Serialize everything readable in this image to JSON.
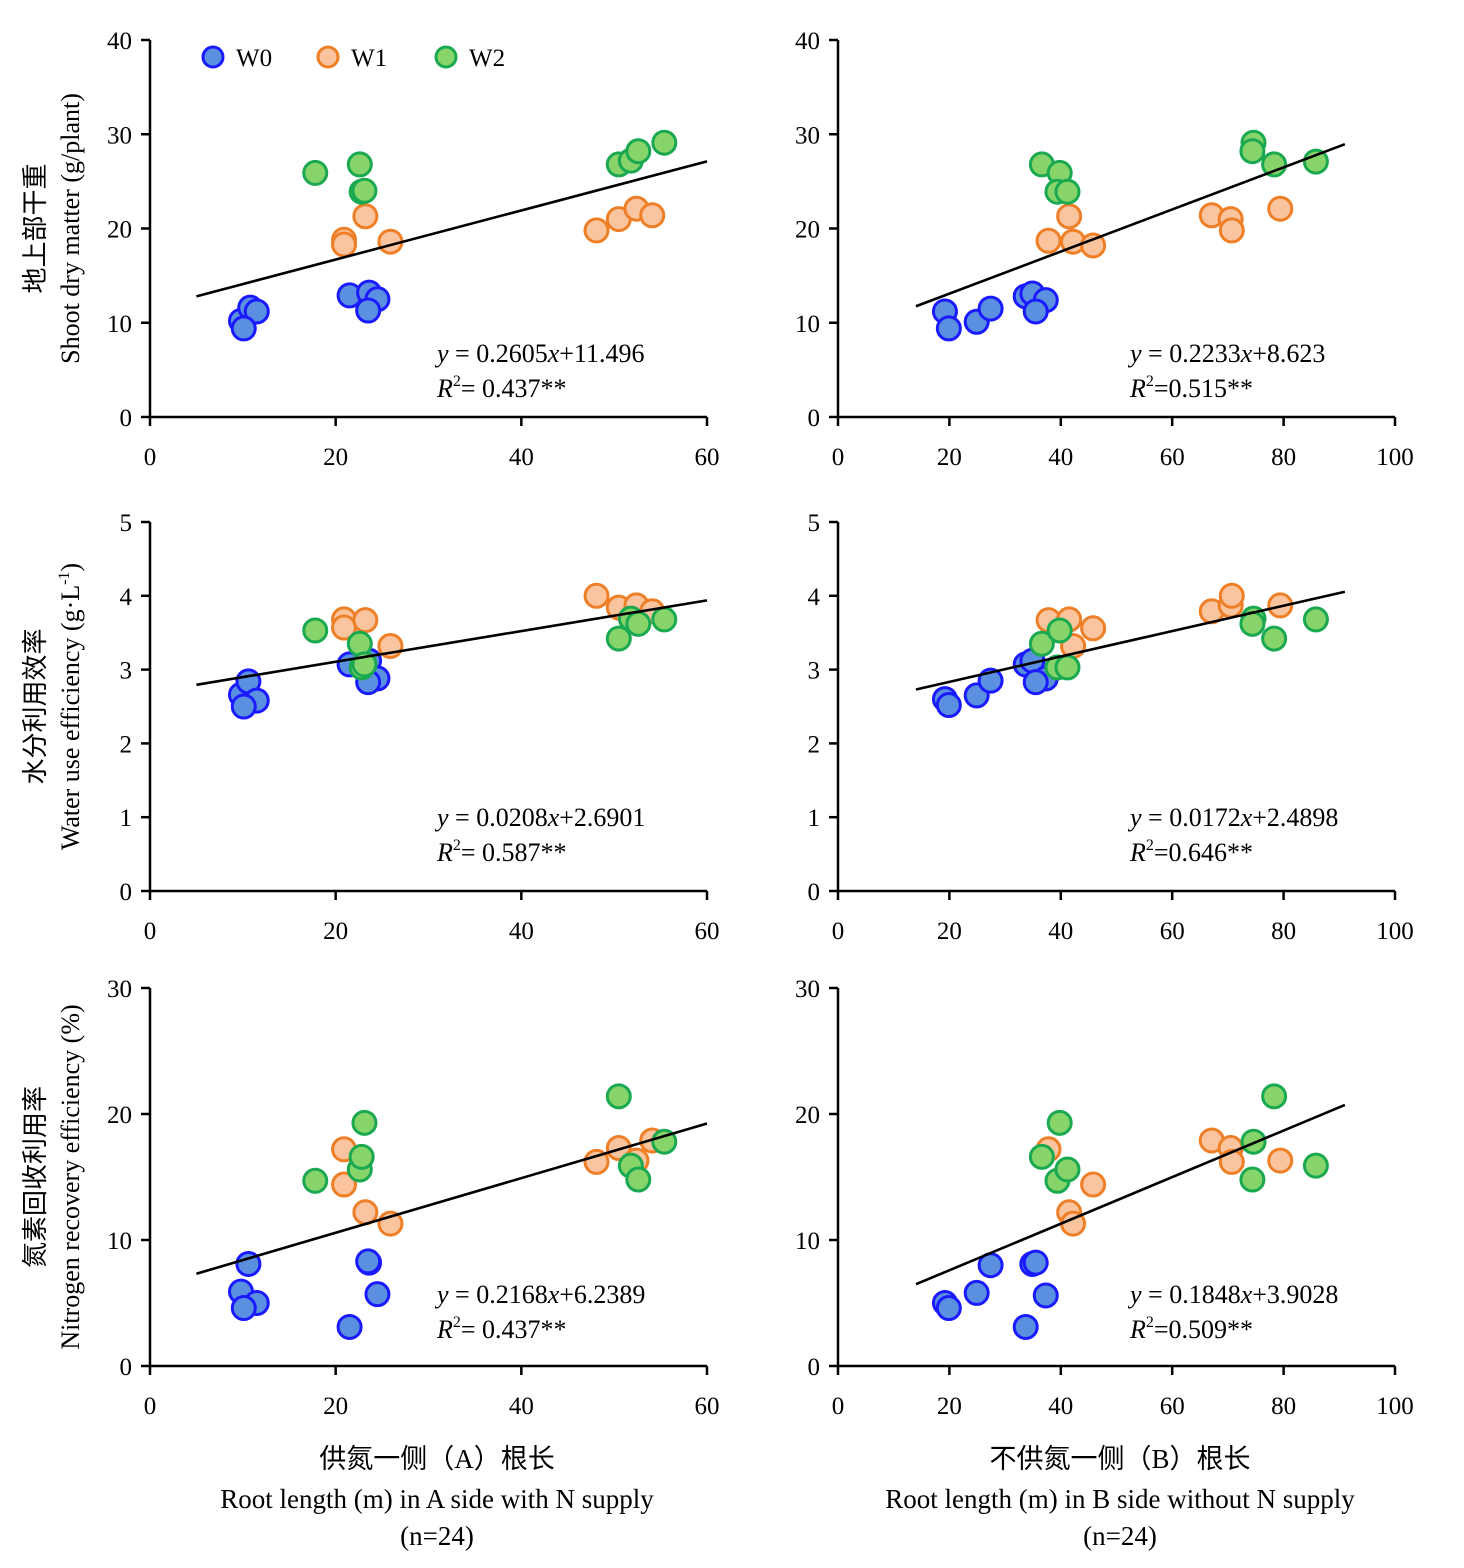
{
  "colors": {
    "W0": {
      "fill": "#5b8fdf",
      "stroke": "#1a1aff"
    },
    "W1": {
      "fill": "#f9c49e",
      "stroke": "#ef7f27"
    },
    "W2": {
      "fill": "#86d46a",
      "stroke": "#1aa850"
    }
  },
  "legend": [
    "W0",
    "W1",
    "W2"
  ],
  "xlabels": {
    "left_cn": "供氮一侧（A）根长",
    "left_en": "Root length (m) in A side with  N supply",
    "left_n": "(n=24)",
    "right_cn": "不供氮一侧（B）根长",
    "right_en": "Root length (m) in B side without N supply",
    "right_n": "(n=24)"
  },
  "chart_data": [
    {
      "type": "scatter",
      "row": 0,
      "col": 0,
      "ylabel_cn": "地上部干重",
      "ylabel_en": "Shoot dry matter (g/plant)",
      "xlim": [
        0,
        60
      ],
      "xticks": [
        "0",
        "20",
        "40",
        "60"
      ],
      "ylim": [
        0,
        40
      ],
      "yticks": [
        "0",
        "10",
        "20",
        "30",
        "40"
      ],
      "fit": {
        "slope": 0.2605,
        "intercept": 11.496,
        "x_range": [
          5,
          60
        ]
      },
      "equation": {
        "y": "y",
        "eq": " = 0.2605",
        "x": "x",
        "rest": "+11.496",
        "r": "R",
        "sup": "2",
        "r_rest": "= 0.437**"
      },
      "series": [
        {
          "name": "W0",
          "points": [
            [
              9.8,
              10.2
            ],
            [
              10.8,
              11.6
            ],
            [
              11.5,
              11.2
            ],
            [
              10.1,
              9.4
            ],
            [
              21.5,
              12.9
            ],
            [
              23.6,
              13.2
            ],
            [
              24.5,
              12.5
            ],
            [
              23.5,
              11.3
            ]
          ]
        },
        {
          "name": "W1",
          "points": [
            [
              20.9,
              18.8
            ],
            [
              20.9,
              18.3
            ],
            [
              23.2,
              21.3
            ],
            [
              25.9,
              18.6
            ],
            [
              48.1,
              19.8
            ],
            [
              50.5,
              21.0
            ],
            [
              52.4,
              22.1
            ],
            [
              54.1,
              21.4
            ]
          ]
        },
        {
          "name": "W2",
          "points": [
            [
              17.8,
              25.9
            ],
            [
              22.6,
              26.8
            ],
            [
              22.8,
              23.9
            ],
            [
              23.1,
              24.0
            ],
            [
              50.5,
              26.8
            ],
            [
              51.8,
              27.2
            ],
            [
              52.6,
              28.2
            ],
            [
              55.4,
              29.1
            ]
          ]
        }
      ]
    },
    {
      "type": "scatter",
      "row": 0,
      "col": 1,
      "ylabel_cn": "",
      "ylabel_en": "",
      "xlim": [
        0,
        100
      ],
      "xticks": [
        "0",
        "20",
        "40",
        "60",
        "80",
        "100"
      ],
      "ylim": [
        0,
        40
      ],
      "yticks": [
        "0",
        "10",
        "20",
        "30",
        "40"
      ],
      "fit": {
        "slope": 0.2233,
        "intercept": 8.623,
        "x_range": [
          14,
          91
        ]
      },
      "equation": {
        "y": "y",
        "eq": " = 0.2233",
        "x": "x",
        "rest": "+8.623",
        "r": "R",
        "sup": "2",
        "r_rest": "=0.515**"
      },
      "series": [
        {
          "name": "W0",
          "points": [
            [
              19.2,
              11.2
            ],
            [
              19.9,
              9.4
            ],
            [
              24.9,
              10.1
            ],
            [
              27.4,
              11.5
            ],
            [
              33.7,
              12.8
            ],
            [
              34.9,
              13.1
            ],
            [
              37.3,
              12.4
            ],
            [
              35.5,
              11.2
            ]
          ]
        },
        {
          "name": "W1",
          "points": [
            [
              37.8,
              18.7
            ],
            [
              41.5,
              21.3
            ],
            [
              42.2,
              18.6
            ],
            [
              45.8,
              18.2
            ],
            [
              67.1,
              21.4
            ],
            [
              70.5,
              21.0
            ],
            [
              70.7,
              19.8
            ],
            [
              79.4,
              22.1
            ]
          ]
        },
        {
          "name": "W2",
          "points": [
            [
              36.6,
              26.8
            ],
            [
              39.8,
              25.9
            ],
            [
              39.4,
              23.9
            ],
            [
              41.2,
              23.9
            ],
            [
              74.6,
              29.1
            ],
            [
              74.4,
              28.2
            ],
            [
              78.3,
              26.8
            ],
            [
              85.8,
              27.1
            ]
          ]
        }
      ]
    },
    {
      "type": "scatter",
      "row": 1,
      "col": 0,
      "ylabel_cn": "水分利用效率",
      "ylabel_en": "Water use efficiency (g·L",
      "ylabel_sup": "-1",
      "ylabel_end": ")",
      "xlim": [
        0,
        60
      ],
      "xticks": [
        "0",
        "20",
        "40",
        "60"
      ],
      "ylim": [
        0,
        5
      ],
      "yticks": [
        "0",
        "1",
        "2",
        "3",
        "4",
        "5"
      ],
      "fit": {
        "slope": 0.0208,
        "intercept": 2.6901,
        "x_range": [
          5,
          60
        ]
      },
      "equation": {
        "y": "y",
        "eq": " = 0.0208",
        "x": "x",
        "rest": "+2.6901",
        "r": "R",
        "sup": "2",
        "r_rest": "= 0.587**"
      },
      "series": [
        {
          "name": "W0",
          "points": [
            [
              9.8,
              2.66
            ],
            [
              10.6,
              2.84
            ],
            [
              11.5,
              2.58
            ],
            [
              10.1,
              2.5
            ],
            [
              21.5,
              3.07
            ],
            [
              23.6,
              3.12
            ],
            [
              24.5,
              2.88
            ],
            [
              23.5,
              2.83
            ]
          ]
        },
        {
          "name": "W1",
          "points": [
            [
              20.9,
              3.68
            ],
            [
              20.9,
              3.57
            ],
            [
              23.2,
              3.67
            ],
            [
              25.9,
              3.32
            ],
            [
              48.1,
              4.0
            ],
            [
              50.5,
              3.84
            ],
            [
              52.4,
              3.87
            ],
            [
              54.1,
              3.79
            ]
          ]
        },
        {
          "name": "W2",
          "points": [
            [
              17.8,
              3.53
            ],
            [
              22.6,
              3.35
            ],
            [
              22.8,
              3.03
            ],
            [
              23.1,
              3.07
            ],
            [
              50.5,
              3.42
            ],
            [
              51.8,
              3.69
            ],
            [
              52.6,
              3.62
            ],
            [
              55.4,
              3.68
            ]
          ]
        }
      ]
    },
    {
      "type": "scatter",
      "row": 1,
      "col": 1,
      "ylabel_cn": "",
      "ylabel_en": "",
      "xlim": [
        0,
        100
      ],
      "xticks": [
        "0",
        "20",
        "40",
        "60",
        "80",
        "100"
      ],
      "ylim": [
        0,
        5
      ],
      "yticks": [
        "0",
        "1",
        "2",
        "3",
        "4",
        "5"
      ],
      "fit": {
        "slope": 0.0172,
        "intercept": 2.4898,
        "x_range": [
          14,
          91
        ]
      },
      "equation": {
        "y": "y",
        "eq": " = 0.0172",
        "x": "x",
        "rest": "+2.4898",
        "r": "R",
        "sup": "2",
        "r_rest": "=0.646**"
      },
      "series": [
        {
          "name": "W0",
          "points": [
            [
              19.2,
              2.6
            ],
            [
              19.9,
              2.52
            ],
            [
              24.9,
              2.65
            ],
            [
              27.4,
              2.85
            ],
            [
              33.7,
              3.07
            ],
            [
              34.9,
              3.12
            ],
            [
              37.3,
              2.88
            ],
            [
              35.5,
              2.83
            ]
          ]
        },
        {
          "name": "W1",
          "points": [
            [
              37.8,
              3.67
            ],
            [
              41.5,
              3.68
            ],
            [
              42.2,
              3.32
            ],
            [
              45.8,
              3.56
            ],
            [
              67.1,
              3.79
            ],
            [
              70.5,
              3.87
            ],
            [
              70.7,
              4.0
            ],
            [
              79.4,
              3.87
            ]
          ]
        },
        {
          "name": "W2",
          "points": [
            [
              36.6,
              3.35
            ],
            [
              39.8,
              3.53
            ],
            [
              39.4,
              3.03
            ],
            [
              41.2,
              3.03
            ],
            [
              74.6,
              3.69
            ],
            [
              74.4,
              3.62
            ],
            [
              78.3,
              3.42
            ],
            [
              85.8,
              3.68
            ]
          ]
        }
      ]
    },
    {
      "type": "scatter",
      "row": 2,
      "col": 0,
      "ylabel_cn": "氮素回收利用率",
      "ylabel_en": "Nitrogen recovery efficiency (%)",
      "xlim": [
        0,
        60
      ],
      "xticks": [
        "0",
        "20",
        "40",
        "60"
      ],
      "ylim": [
        0,
        30
      ],
      "yticks": [
        "0",
        "10",
        "20",
        "30"
      ],
      "fit": {
        "slope": 0.2168,
        "intercept": 6.2389,
        "x_range": [
          5,
          60
        ]
      },
      "equation": {
        "y": "y",
        "eq": " = 0.2168",
        "x": "x",
        "rest": "+6.2389",
        "r": "R",
        "sup": "2",
        "r_rest": "= 0.437**"
      },
      "series": [
        {
          "name": "W0",
          "points": [
            [
              9.8,
              5.9
            ],
            [
              10.6,
              8.1
            ],
            [
              11.5,
              5.0
            ],
            [
              10.1,
              4.6
            ],
            [
              21.5,
              3.1
            ],
            [
              23.6,
              8.2
            ],
            [
              24.5,
              5.7
            ],
            [
              23.5,
              8.3
            ]
          ]
        },
        {
          "name": "W1",
          "points": [
            [
              20.9,
              17.2
            ],
            [
              20.9,
              14.4
            ],
            [
              23.2,
              12.2
            ],
            [
              25.9,
              11.3
            ],
            [
              48.1,
              16.2
            ],
            [
              50.5,
              17.3
            ],
            [
              52.4,
              16.3
            ],
            [
              54.1,
              17.9
            ]
          ]
        },
        {
          "name": "W2",
          "points": [
            [
              17.8,
              14.7
            ],
            [
              22.6,
              15.6
            ],
            [
              22.8,
              16.6
            ],
            [
              23.1,
              19.3
            ],
            [
              50.5,
              21.4
            ],
            [
              51.8,
              15.9
            ],
            [
              52.6,
              14.8
            ],
            [
              55.4,
              17.8
            ]
          ]
        }
      ]
    },
    {
      "type": "scatter",
      "row": 2,
      "col": 1,
      "ylabel_cn": "",
      "ylabel_en": "",
      "xlim": [
        0,
        100
      ],
      "xticks": [
        "0",
        "20",
        "40",
        "60",
        "80",
        "100"
      ],
      "ylim": [
        0,
        30
      ],
      "yticks": [
        "0",
        "10",
        "20",
        "30"
      ],
      "fit": {
        "slope": 0.1848,
        "intercept": 3.9028,
        "x_range": [
          14,
          91
        ]
      },
      "equation": {
        "y": "y",
        "eq": " = 0.1848",
        "x": "x",
        "rest": "+3.9028",
        "r": "R",
        "sup": "2",
        "r_rest": "=0.509**"
      },
      "series": [
        {
          "name": "W0",
          "points": [
            [
              19.2,
              5.0
            ],
            [
              19.9,
              4.6
            ],
            [
              24.9,
              5.8
            ],
            [
              27.4,
              8.0
            ],
            [
              33.7,
              3.1
            ],
            [
              34.9,
              8.1
            ],
            [
              37.3,
              5.6
            ],
            [
              35.5,
              8.2
            ]
          ]
        },
        {
          "name": "W1",
          "points": [
            [
              37.8,
              17.2
            ],
            [
              41.5,
              12.2
            ],
            [
              42.2,
              11.3
            ],
            [
              45.8,
              14.4
            ],
            [
              67.1,
              17.9
            ],
            [
              70.5,
              17.3
            ],
            [
              70.7,
              16.2
            ],
            [
              79.4,
              16.3
            ]
          ]
        },
        {
          "name": "W2",
          "points": [
            [
              36.6,
              16.6
            ],
            [
              39.8,
              19.3
            ],
            [
              39.4,
              14.7
            ],
            [
              41.2,
              15.6
            ],
            [
              74.6,
              17.8
            ],
            [
              74.4,
              14.8
            ],
            [
              78.3,
              21.4
            ],
            [
              85.8,
              15.9
            ]
          ]
        }
      ]
    }
  ]
}
